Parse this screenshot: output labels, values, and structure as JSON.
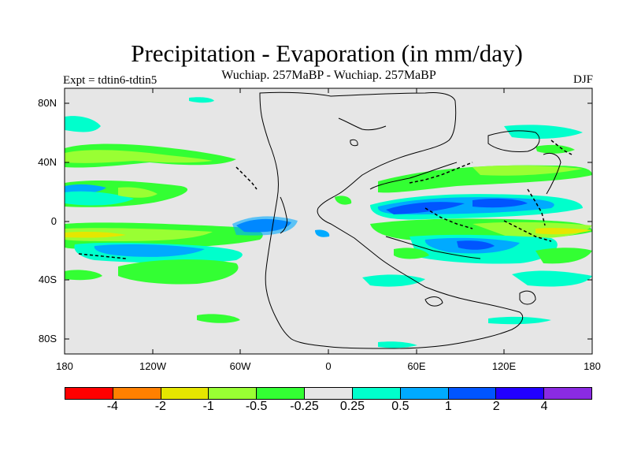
{
  "title": "Precipitation - Evaporation (in mm/day)",
  "subtitle": "Wuchiap. 257MaBP - Wuchiap. 257MaBP",
  "experiment_label": "Expt = tdtin6-tdtin5",
  "season_label": "DJF",
  "y_axis_labels": [
    "80N",
    "40N",
    "0",
    "40S",
    "80S"
  ],
  "x_axis_labels": [
    "180",
    "120W",
    "60W",
    "0",
    "60E",
    "120E",
    "180"
  ],
  "colorbar": {
    "colors": [
      "#ff0000",
      "#ff8000",
      "#e6e600",
      "#99ff33",
      "#33ff33",
      "#e6e6e6",
      "#00ffcc",
      "#00aaff",
      "#0055ff",
      "#2200ff",
      "#8a2be2"
    ],
    "labels": [
      "-4",
      "-2",
      "-1",
      "-0.5",
      "-0.25",
      "0.25",
      "0.5",
      "1",
      "2",
      "4"
    ]
  }
}
